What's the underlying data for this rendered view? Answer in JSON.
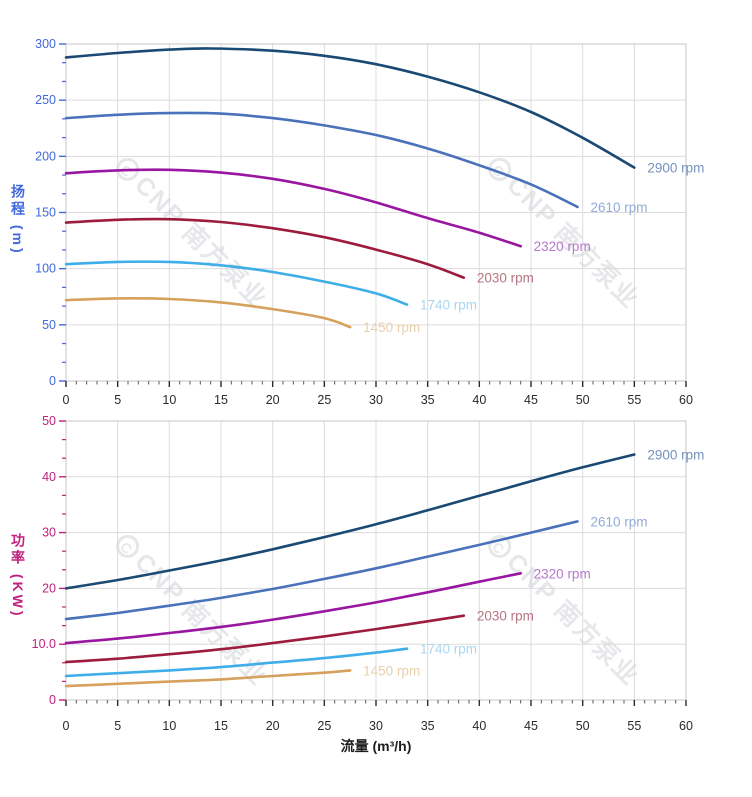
{
  "x_axis_title": "流量 (m³/h)",
  "head_axis_title": "扬程 (m)",
  "power_axis_title": "功率 (KW)",
  "watermark": {
    "logo_letter": "C",
    "text": "CNP 南方泵业",
    "color": "#d2d4da"
  },
  "style": {
    "grid_color": "#dcdcdc",
    "border_color": "#c5c5c5",
    "x_tick_color": "#2a2a2a",
    "head_axis_color": "#4168df",
    "power_axis_color": "#c21f7e"
  },
  "chart_data": [
    {
      "id": "head",
      "type": "line",
      "title": "",
      "xlabel": "流量 (m³/h)",
      "ylabel": "扬程 (m)",
      "xlim": [
        0,
        60
      ],
      "ylim": [
        0,
        300
      ],
      "grid": true,
      "legend_position": "curve-end",
      "x_major_step": 5,
      "x_minor_step": 1,
      "x_tick_labels": [
        "0",
        "5",
        "10",
        "15",
        "20",
        "25",
        "30",
        "35",
        "40",
        "45",
        "50",
        "55",
        "60"
      ],
      "y_ticks": [
        {
          "v": 0,
          "label": "0"
        },
        {
          "v": 50,
          "label": "50"
        },
        {
          "v": 100,
          "label": "100"
        },
        {
          "v": 150,
          "label": "150"
        },
        {
          "v": 200,
          "label": "200"
        },
        {
          "v": 250,
          "label": "250"
        },
        {
          "v": 300,
          "label": "300"
        }
      ],
      "series": [
        {
          "name": "2900 rpm",
          "color": "#1a4a73",
          "label_color": "#7592bf",
          "points": [
            [
              0,
              288
            ],
            [
              5,
              292
            ],
            [
              10,
              295
            ],
            [
              14,
              296
            ],
            [
              20,
              294
            ],
            [
              25,
              289.5
            ],
            [
              30,
              282
            ],
            [
              35,
              271
            ],
            [
              40,
              257
            ],
            [
              45,
              239.5
            ],
            [
              50,
              216.5
            ],
            [
              55,
              190
            ]
          ]
        },
        {
          "name": "2610 rpm",
          "color": "#4a72ba",
          "label_color": "#92abd8",
          "points": [
            [
              0,
              234
            ],
            [
              5,
              237
            ],
            [
              10,
              238.5
            ],
            [
              15,
              238
            ],
            [
              20,
              234
            ],
            [
              25,
              227.5
            ],
            [
              30,
              219
            ],
            [
              35,
              207
            ],
            [
              40,
              192
            ],
            [
              45,
              175
            ],
            [
              49.5,
              155
            ]
          ]
        },
        {
          "name": "2320 rpm",
          "color": "#9916a0",
          "label_color": "#b878ca",
          "points": [
            [
              0,
              185
            ],
            [
              5,
              187.5
            ],
            [
              10,
              188
            ],
            [
              15,
              185.5
            ],
            [
              20,
              180
            ],
            [
              25,
              171
            ],
            [
              30,
              159
            ],
            [
              35,
              145
            ],
            [
              40,
              132
            ],
            [
              44,
              120
            ]
          ]
        },
        {
          "name": "2030 rpm",
          "color": "#9d1c3e",
          "label_color": "#b57583",
          "points": [
            [
              0,
              141
            ],
            [
              5,
              143.5
            ],
            [
              10,
              144
            ],
            [
              15,
              141.5
            ],
            [
              20,
              136
            ],
            [
              25,
              128
            ],
            [
              30,
              117
            ],
            [
              35,
              104
            ],
            [
              38.5,
              92
            ]
          ]
        },
        {
          "name": "1740 rpm",
          "color": "#3daee8",
          "label_color": "#a9d6f2",
          "points": [
            [
              0,
              104
            ],
            [
              5,
              106
            ],
            [
              10,
              106
            ],
            [
              15,
              103
            ],
            [
              20,
              97
            ],
            [
              25,
              88.5
            ],
            [
              30,
              78
            ],
            [
              33,
              68
            ]
          ]
        },
        {
          "name": "1450 rpm",
          "color": "#d6a05d",
          "label_color": "#e9d0ac",
          "points": [
            [
              0,
              72
            ],
            [
              5,
              73.5
            ],
            [
              10,
              73
            ],
            [
              15,
              70
            ],
            [
              20,
              64
            ],
            [
              25,
              56
            ],
            [
              27.5,
              48
            ]
          ]
        }
      ]
    },
    {
      "id": "power",
      "type": "line",
      "title": "",
      "xlabel": "流量 (m³/h)",
      "ylabel": "功率 (KW)",
      "xlim": [
        0,
        60
      ],
      "ylim": [
        0,
        50
      ],
      "grid": true,
      "legend_position": "curve-end",
      "x_major_step": 5,
      "x_minor_step": 1,
      "x_tick_labels": [
        "0",
        "5",
        "10",
        "15",
        "20",
        "25",
        "30",
        "35",
        "40",
        "45",
        "50",
        "55",
        "60"
      ],
      "y_ticks": [
        {
          "v": 0,
          "label": "0"
        },
        {
          "v": 10,
          "label": "10.0"
        },
        {
          "v": 20,
          "label": "20"
        },
        {
          "v": 30,
          "label": "30"
        },
        {
          "v": 40,
          "label": "40"
        },
        {
          "v": 50,
          "label": "50"
        }
      ],
      "series": [
        {
          "name": "2900 rpm",
          "color": "#1a4a73",
          "label_color": "#7592bf",
          "points": [
            [
              0,
              20
            ],
            [
              5,
              21.5
            ],
            [
              10,
              23.2
            ],
            [
              15,
              25
            ],
            [
              20,
              27
            ],
            [
              25,
              29.2
            ],
            [
              30,
              31.5
            ],
            [
              35,
              34
            ],
            [
              40,
              36.6
            ],
            [
              45,
              39.2
            ],
            [
              50,
              41.7
            ],
            [
              55,
              44
            ]
          ]
        },
        {
          "name": "2610 rpm",
          "color": "#4a72ba",
          "label_color": "#92abd8",
          "points": [
            [
              0,
              14.5
            ],
            [
              5,
              15.6
            ],
            [
              10,
              16.9
            ],
            [
              15,
              18.3
            ],
            [
              20,
              19.9
            ],
            [
              25,
              21.7
            ],
            [
              30,
              23.6
            ],
            [
              35,
              25.7
            ],
            [
              40,
              27.8
            ],
            [
              45,
              30
            ],
            [
              49.5,
              32
            ]
          ]
        },
        {
          "name": "2320 rpm",
          "color": "#9916a0",
          "label_color": "#b878ca",
          "points": [
            [
              0,
              10.2
            ],
            [
              5,
              11
            ],
            [
              10,
              12
            ],
            [
              15,
              13.1
            ],
            [
              20,
              14.4
            ],
            [
              25,
              15.9
            ],
            [
              30,
              17.5
            ],
            [
              35,
              19.3
            ],
            [
              40,
              21.2
            ],
            [
              44,
              22.7
            ]
          ]
        },
        {
          "name": "2030 rpm",
          "color": "#9d1c3e",
          "label_color": "#b57583",
          "points": [
            [
              0,
              6.8
            ],
            [
              5,
              7.4
            ],
            [
              10,
              8.2
            ],
            [
              15,
              9.1
            ],
            [
              20,
              10.2
            ],
            [
              25,
              11.4
            ],
            [
              30,
              12.7
            ],
            [
              35,
              14.1
            ],
            [
              38.5,
              15.1
            ]
          ]
        },
        {
          "name": "1740 rpm",
          "color": "#3daee8",
          "label_color": "#a9d6f2",
          "points": [
            [
              0,
              4.3
            ],
            [
              5,
              4.8
            ],
            [
              10,
              5.3
            ],
            [
              15,
              5.9
            ],
            [
              20,
              6.7
            ],
            [
              25,
              7.5
            ],
            [
              30,
              8.5
            ],
            [
              33,
              9.2
            ]
          ]
        },
        {
          "name": "1450 rpm",
          "color": "#d6a05d",
          "label_color": "#e9d0ac",
          "points": [
            [
              0,
              2.5
            ],
            [
              5,
              2.9
            ],
            [
              10,
              3.3
            ],
            [
              15,
              3.7
            ],
            [
              20,
              4.3
            ],
            [
              25,
              4.9
            ],
            [
              27.5,
              5.3
            ]
          ]
        }
      ]
    }
  ]
}
